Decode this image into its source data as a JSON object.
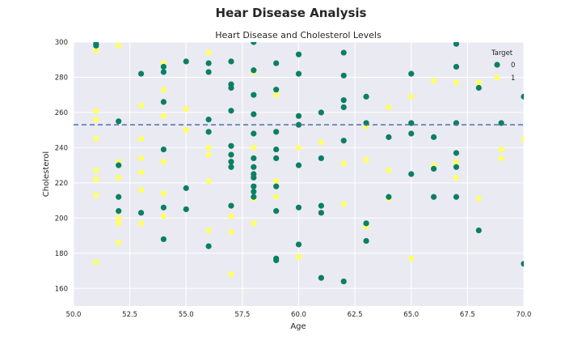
{
  "suptitle": "Hear Disease Analysis",
  "colors": {
    "background": "#eaeaf2",
    "grid": "#ffffff",
    "target0": "#0b7f64",
    "target1": "#ffff66",
    "mean_line": "#4c72b0"
  },
  "chart_data": {
    "type": "scatter",
    "title": "Heart Disease and Cholesterol Levels",
    "xlabel": "Age",
    "ylabel": "Cholesterol",
    "xlim": [
      50,
      70
    ],
    "ylim": [
      150,
      300
    ],
    "xticks": [
      "50.0",
      "52.5",
      "55.0",
      "57.5",
      "60.0",
      "62.5",
      "65.0",
      "67.5",
      "70.0"
    ],
    "yticks": [
      "160",
      "180",
      "200",
      "220",
      "240",
      "260",
      "280",
      "300"
    ],
    "grid": true,
    "legend": {
      "title": "Target",
      "position": "top-right"
    },
    "reference_line": {
      "axis": "y",
      "value": 253,
      "style": "dashed"
    },
    "series": [
      {
        "name": "0",
        "points": [
          [
            51,
            299
          ],
          [
            51,
            298
          ],
          [
            52,
            255
          ],
          [
            52,
            230
          ],
          [
            52,
            212
          ],
          [
            52,
            204
          ],
          [
            53,
            282
          ],
          [
            53,
            203
          ],
          [
            54,
            286
          ],
          [
            54,
            283
          ],
          [
            54,
            266
          ],
          [
            54,
            239
          ],
          [
            54,
            206
          ],
          [
            54,
            188
          ],
          [
            55,
            289
          ],
          [
            55,
            217
          ],
          [
            55,
            205
          ],
          [
            56,
            288
          ],
          [
            56,
            283
          ],
          [
            56,
            256
          ],
          [
            56,
            249
          ],
          [
            56,
            184
          ],
          [
            57,
            289
          ],
          [
            57,
            276
          ],
          [
            57,
            274
          ],
          [
            57,
            261
          ],
          [
            57,
            241
          ],
          [
            57,
            236
          ],
          [
            57,
            232
          ],
          [
            57,
            229
          ],
          [
            57,
            207
          ],
          [
            58,
            300
          ],
          [
            58,
            284
          ],
          [
            58,
            270
          ],
          [
            58,
            259
          ],
          [
            58,
            248
          ],
          [
            58,
            234
          ],
          [
            58,
            229
          ],
          [
            58,
            225
          ],
          [
            58,
            223
          ],
          [
            58,
            218
          ],
          [
            58,
            215
          ],
          [
            58,
            212
          ],
          [
            59,
            288
          ],
          [
            59,
            273
          ],
          [
            59,
            249
          ],
          [
            59,
            239
          ],
          [
            59,
            234
          ],
          [
            59,
            218
          ],
          [
            59,
            204
          ],
          [
            59,
            177
          ],
          [
            59,
            176
          ],
          [
            60,
            293
          ],
          [
            60,
            282
          ],
          [
            60,
            258
          ],
          [
            60,
            253
          ],
          [
            60,
            230
          ],
          [
            60,
            206
          ],
          [
            60,
            185
          ],
          [
            61,
            260
          ],
          [
            61,
            234
          ],
          [
            61,
            207
          ],
          [
            61,
            203
          ],
          [
            61,
            166
          ],
          [
            62,
            294
          ],
          [
            62,
            281
          ],
          [
            62,
            267
          ],
          [
            62,
            263
          ],
          [
            62,
            244
          ],
          [
            62,
            164
          ],
          [
            63,
            269
          ],
          [
            63,
            254
          ],
          [
            63,
            197
          ],
          [
            63,
            187
          ],
          [
            64,
            246
          ],
          [
            64,
            212
          ],
          [
            65,
            282
          ],
          [
            65,
            254
          ],
          [
            65,
            248
          ],
          [
            65,
            225
          ],
          [
            66,
            246
          ],
          [
            66,
            228
          ],
          [
            66,
            212
          ],
          [
            67,
            299
          ],
          [
            67,
            286
          ],
          [
            67,
            254
          ],
          [
            67,
            237
          ],
          [
            67,
            229
          ],
          [
            67,
            212
          ],
          [
            68,
            274
          ],
          [
            68,
            193
          ],
          [
            69,
            254
          ],
          [
            70,
            269
          ],
          [
            70,
            174
          ]
        ]
      },
      {
        "name": "1",
        "points": [
          [
            51,
            295
          ],
          [
            51,
            261
          ],
          [
            51,
            256
          ],
          [
            51,
            245
          ],
          [
            51,
            227
          ],
          [
            51,
            222
          ],
          [
            51,
            213
          ],
          [
            51,
            175
          ],
          [
            52,
            298
          ],
          [
            52,
            232
          ],
          [
            52,
            223
          ],
          [
            52,
            204
          ],
          [
            52,
            200
          ],
          [
            52,
            197
          ],
          [
            52,
            186
          ],
          [
            53,
            264
          ],
          [
            53,
            245
          ],
          [
            53,
            234
          ],
          [
            53,
            226
          ],
          [
            53,
            216
          ],
          [
            53,
            197
          ],
          [
            54,
            288
          ],
          [
            54,
            273
          ],
          [
            54,
            258
          ],
          [
            54,
            232
          ],
          [
            54,
            214
          ],
          [
            54,
            201
          ],
          [
            55,
            262
          ],
          [
            55,
            250
          ],
          [
            56,
            294
          ],
          [
            56,
            240
          ],
          [
            56,
            236
          ],
          [
            56,
            221
          ],
          [
            56,
            193
          ],
          [
            57,
            207
          ],
          [
            57,
            201
          ],
          [
            57,
            192
          ],
          [
            57,
            168
          ],
          [
            58,
            283
          ],
          [
            58,
            248
          ],
          [
            58,
            240
          ],
          [
            58,
            211
          ],
          [
            58,
            197
          ],
          [
            59,
            270
          ],
          [
            59,
            234
          ],
          [
            59,
            221
          ],
          [
            59,
            212
          ],
          [
            60,
            240
          ],
          [
            60,
            178
          ],
          [
            61,
            243
          ],
          [
            61,
            203
          ],
          [
            62,
            231
          ],
          [
            62,
            208
          ],
          [
            63,
            252
          ],
          [
            63,
            233
          ],
          [
            63,
            195
          ],
          [
            64,
            263
          ],
          [
            64,
            227
          ],
          [
            64,
            211
          ],
          [
            65,
            269
          ],
          [
            65,
            177
          ],
          [
            66,
            278
          ],
          [
            66,
            230
          ],
          [
            67,
            277
          ],
          [
            67,
            232
          ],
          [
            67,
            223
          ],
          [
            68,
            277
          ],
          [
            68,
            211
          ],
          [
            69,
            239
          ],
          [
            69,
            234
          ],
          [
            70,
            245
          ]
        ]
      }
    ]
  }
}
